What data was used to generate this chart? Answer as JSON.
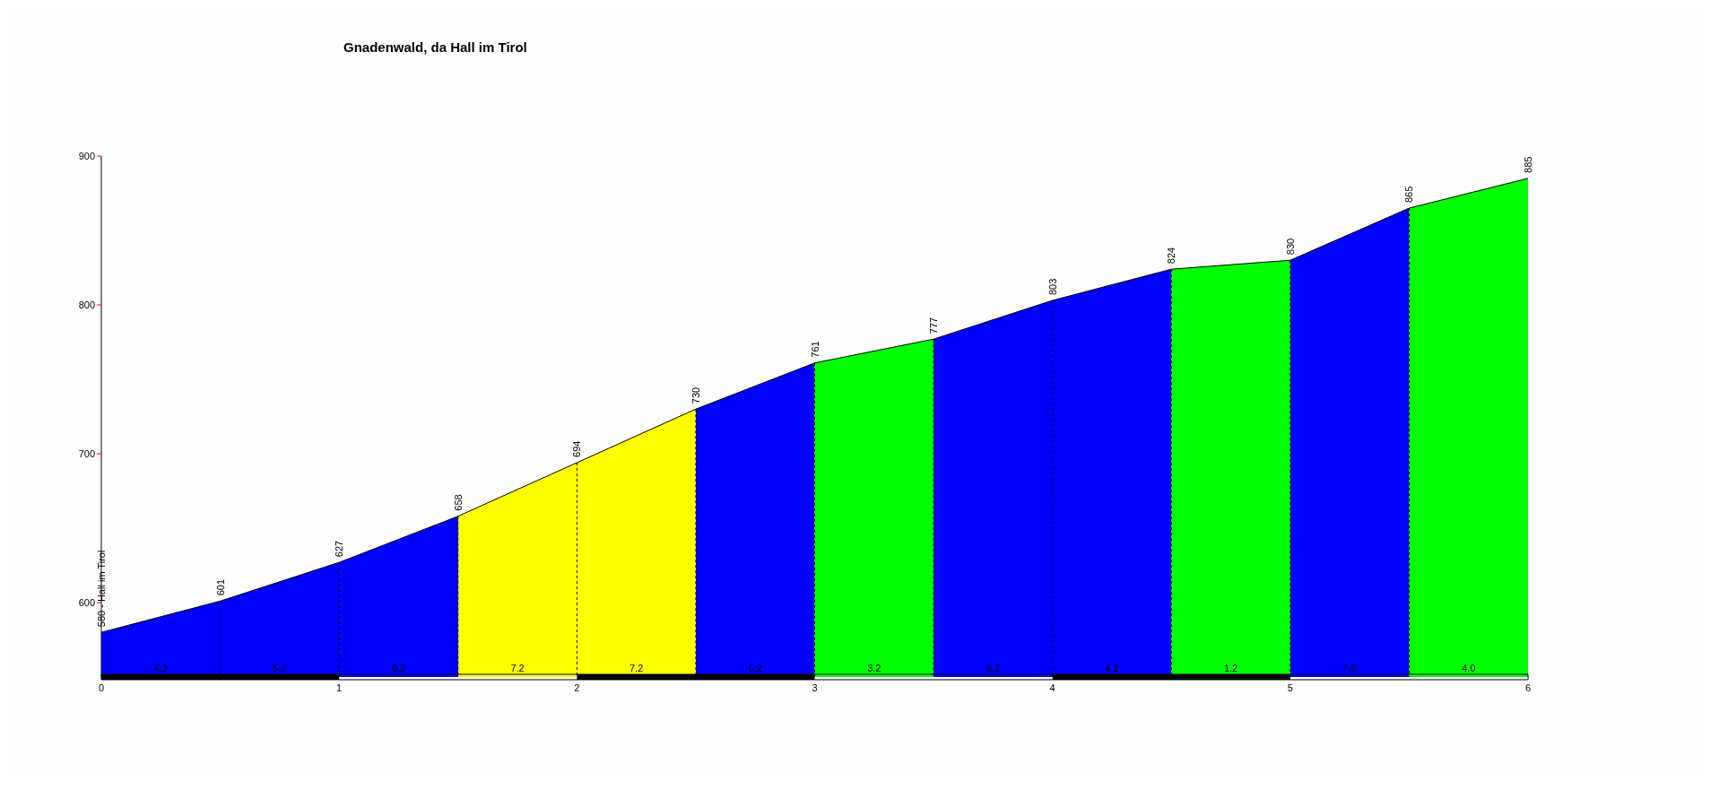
{
  "chart_data": {
    "type": "area",
    "title": "Gnadenwald, da Hall im Tirol",
    "x": [
      0,
      0.5,
      1,
      1.5,
      2,
      2.5,
      3,
      3.5,
      4,
      4.5,
      5,
      5.5,
      6
    ],
    "values": [
      580,
      601,
      627,
      658,
      694,
      730,
      761,
      777,
      803,
      824,
      830,
      865,
      885
    ],
    "value_labels": [
      "580 - Hall im Tirol",
      "601",
      "627",
      "658",
      "694",
      "730",
      "761",
      "777",
      "803",
      "824",
      "830",
      "865",
      "885"
    ],
    "colors": [
      "#0000ff",
      "#0000ff",
      "#0000ff",
      "#0000ff",
      "#ffff00",
      "#ffff00",
      "#0000ff",
      "#00ff00",
      "#0000ff",
      "#0000ff",
      "#00ff00",
      "#0000ff",
      "#00ff00"
    ],
    "annotations": [
      {
        "text": "4.2",
        "x": 0.25,
        "y": 550
      },
      {
        "text": "5.2",
        "x": 0.75,
        "y": 550
      },
      {
        "text": "6.2",
        "x": 1.25,
        "y": 550
      },
      {
        "text": "7.2",
        "x": 1.75,
        "y": 550
      },
      {
        "text": "7.2",
        "x": 2.25,
        "y": 550
      },
      {
        "text": "6.2",
        "x": 2.75,
        "y": 550
      },
      {
        "text": "3.2",
        "x": 3.25,
        "y": 550
      },
      {
        "text": "5.2",
        "x": 3.75,
        "y": 550
      },
      {
        "text": "4.2",
        "x": 4.25,
        "y": 550
      },
      {
        "text": "1.2",
        "x": 4.75,
        "y": 550
      },
      {
        "text": "7.0",
        "x": 5.25,
        "y": 550
      },
      {
        "text": "4.0",
        "x": 5.75,
        "y": 550
      }
    ],
    "xlim": [
      0,
      6
    ],
    "xticks": [
      0,
      1,
      2,
      3,
      4,
      5,
      6
    ],
    "ylim": [
      550,
      900
    ],
    "yticks": [
      600,
      700,
      800,
      900
    ]
  }
}
